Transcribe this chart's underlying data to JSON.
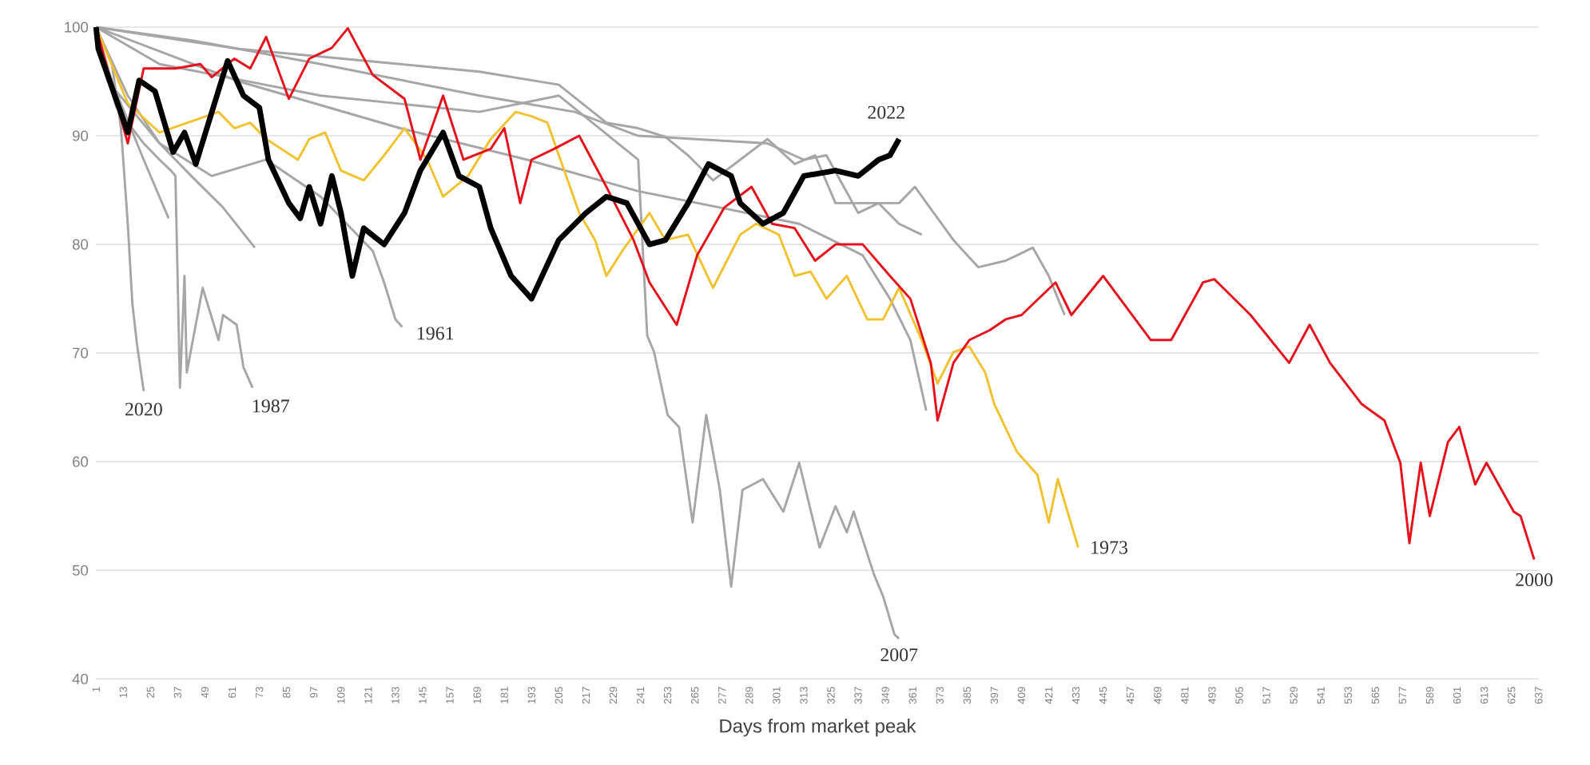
{
  "chart_data": {
    "type": "line",
    "xlabel": "Days from market peak",
    "xlim": [
      1,
      637
    ],
    "ylim": [
      40,
      100
    ],
    "xticks": [
      1,
      13,
      25,
      37,
      49,
      61,
      73,
      85,
      97,
      109,
      121,
      133,
      145,
      157,
      169,
      181,
      193,
      205,
      217,
      229,
      241,
      253,
      265,
      277,
      289,
      301,
      313,
      325,
      337,
      349,
      361,
      373,
      385,
      397,
      409,
      421,
      433,
      445,
      457,
      469,
      481,
      493,
      505,
      517,
      529,
      541,
      553,
      565,
      577,
      589,
      601,
      613,
      625,
      637
    ],
    "yticks": [
      40,
      50,
      60,
      70,
      80,
      90,
      100
    ],
    "grid": "y",
    "line_style": "solid",
    "marker": "none",
    "series": [
      {
        "color": "#a6a6a6",
        "x": [
          1,
          64,
          135,
          191,
          240,
          276,
          311,
          339,
          351,
          360,
          367
        ],
        "values": [
          100,
          95,
          90.7,
          87.8,
          84.9,
          83.4,
          81.9,
          79,
          75,
          71.2,
          64.7
        ]
      },
      {
        "color": "#a6a6a6",
        "x": [
          1,
          43,
          100,
          170,
          212,
          240,
          297,
          313,
          323,
          337,
          346,
          355,
          365
        ],
        "values": [
          100,
          98.8,
          96.6,
          93.7,
          92.2,
          90,
          89.3,
          87.8,
          88.2,
          82.9,
          83.8,
          81.9,
          80.9
        ]
      },
      {
        "color": "#a6a6a6",
        "x": [
          1,
          64,
          135,
          170,
          205,
          226,
          240,
          252,
          262,
          273,
          285,
          297,
          309,
          318,
          327,
          341,
          355,
          362,
          379,
          390,
          402,
          414,
          421,
          428
        ],
        "values": [
          100,
          98,
          96.6,
          95.9,
          94.7,
          91.2,
          90.7,
          89.9,
          88.2,
          85.9,
          87.8,
          89.7,
          87.4,
          88.2,
          83.8,
          83.8,
          83.8,
          85.3,
          80.4,
          77.9,
          78.5,
          79.7,
          77.1,
          73.5
        ]
      },
      {
        "color": "#a6a6a6",
        "x": [
          1,
          15,
          29,
          43,
          57,
          71
        ],
        "values": [
          100,
          93.7,
          89.3,
          86.3,
          83.4,
          79.7
        ]
      },
      {
        "color": "#a6a6a6",
        "x": [
          1,
          8,
          22,
          33
        ],
        "values": [
          100,
          95,
          87.8,
          82.4
        ]
      },
      {
        "name": "2020",
        "color": "#a6a6a6",
        "x": [
          1,
          8,
          12,
          15,
          17,
          19,
          22
        ],
        "values": [
          100,
          96.6,
          90.7,
          81.9,
          74.6,
          70.9,
          66.5
        ]
      },
      {
        "name": "1987",
        "color": "#a6a6a6",
        "x": [
          1,
          3,
          10,
          22,
          29,
          34,
          36,
          38,
          40,
          41,
          48,
          55,
          57,
          63,
          66,
          70
        ],
        "values": [
          100,
          97.6,
          92.6,
          89.3,
          87.8,
          86.8,
          86.3,
          66.8,
          77.1,
          68.2,
          76,
          71.2,
          73.5,
          72.6,
          68.7,
          66.8
        ]
      },
      {
        "name": "1961",
        "color": "#a6a6a6",
        "x": [
          1,
          6,
          29,
          52,
          76,
          100,
          123,
          128,
          133,
          136
        ],
        "values": [
          100,
          95.1,
          89.3,
          86.3,
          87.8,
          84.4,
          79.4,
          76.5,
          73.1,
          72.4
        ]
      },
      {
        "name": "2007",
        "color": "#a6a6a6",
        "x": [
          1,
          29,
          100,
          170,
          205,
          240,
          244,
          247,
          253,
          258,
          264,
          270,
          276,
          281,
          286,
          295,
          304,
          311,
          320,
          327,
          332,
          335,
          344,
          348,
          353,
          355
        ],
        "values": [
          100,
          96.6,
          93.7,
          92.2,
          93.7,
          87.8,
          71.6,
          70.1,
          64.3,
          63.2,
          54.4,
          64.3,
          57.4,
          48.5,
          57.4,
          58.4,
          55.4,
          59.9,
          52.1,
          55.9,
          53.5,
          55.4,
          49.6,
          47.6,
          44.1,
          43.7
        ]
      },
      {
        "name": "1973",
        "color": "#f2c12e",
        "x": [
          1,
          15,
          29,
          55,
          62,
          69,
          76,
          90,
          95,
          102,
          109,
          119,
          128,
          137,
          147,
          154,
          165,
          175,
          186,
          193,
          200,
          214,
          221,
          226,
          233,
          245,
          252,
          262,
          273,
          285,
          292,
          302,
          309,
          316,
          323,
          332,
          341,
          348,
          355,
          365,
          372,
          379,
          386,
          393,
          397,
          407,
          416,
          421,
          425,
          434
        ],
        "values": [
          100,
          93,
          90.3,
          92.2,
          90.7,
          91.2,
          89.7,
          87.8,
          89.7,
          90.3,
          86.8,
          85.9,
          88.2,
          90.7,
          87.8,
          84.4,
          86.3,
          89.7,
          92.2,
          91.8,
          91.2,
          82.9,
          80.4,
          77.1,
          79.4,
          82.9,
          80.4,
          80.9,
          76,
          80.9,
          81.9,
          80.9,
          77.1,
          77.5,
          75,
          77.1,
          73.1,
          73.1,
          76,
          71.2,
          67.2,
          70.1,
          70.6,
          68.2,
          65.3,
          60.9,
          58.8,
          54.4,
          58.4,
          52.1
        ]
      },
      {
        "name": "2000",
        "color": "#e8101a",
        "x": [
          1,
          15,
          22,
          36,
          47,
          52,
          62,
          69,
          76,
          86,
          95,
          105,
          112,
          123,
          137,
          144,
          154,
          163,
          175,
          181,
          188,
          193,
          203,
          214,
          226,
          238,
          245,
          257,
          266,
          278,
          290,
          299,
          309,
          318,
          327,
          339,
          351,
          360,
          369,
          372,
          379,
          386,
          395,
          402,
          409,
          424,
          431,
          445,
          466,
          475,
          489,
          494,
          510,
          527,
          536,
          545,
          559,
          569,
          576,
          580,
          585,
          589,
          597,
          602,
          609,
          614,
          626,
          629,
          635
        ],
        "values": [
          100,
          89.3,
          96.2,
          96.2,
          96.6,
          95.4,
          97.1,
          96.2,
          99.1,
          93.4,
          97.1,
          98.1,
          99.9,
          95.6,
          93.4,
          87.8,
          93.7,
          87.8,
          88.8,
          90.7,
          83.8,
          87.8,
          88.8,
          90,
          85.3,
          80.4,
          76.5,
          72.6,
          79,
          83.4,
          85.3,
          81.9,
          81.5,
          78.5,
          80,
          80,
          77.1,
          75,
          69.1,
          63.8,
          69.1,
          71.2,
          72.1,
          73.1,
          73.5,
          76.5,
          73.5,
          77.1,
          71.2,
          71.2,
          76.5,
          76.8,
          73.5,
          69.1,
          72.6,
          69.1,
          65.3,
          63.8,
          59.9,
          52.5,
          59.9,
          55,
          61.8,
          63.2,
          57.9,
          59.9,
          55.4,
          55,
          51
        ]
      },
      {
        "name": "2022",
        "color": "#000000",
        "x": [
          1,
          2,
          15,
          20,
          27,
          35,
          40,
          45,
          59,
          66,
          73,
          77,
          86,
          91,
          95,
          100,
          105,
          109,
          114,
          119,
          128,
          137,
          144,
          154,
          161,
          170,
          175,
          184,
          193,
          205,
          217,
          226,
          235,
          245,
          252,
          262,
          271,
          281,
          285,
          295,
          304,
          313,
          327,
          337,
          346,
          351,
          355
        ],
        "values": [
          100,
          98,
          90.3,
          95.1,
          94.1,
          88.5,
          90.3,
          87.4,
          96.9,
          93.7,
          92.6,
          87.8,
          83.8,
          82.4,
          85.3,
          81.9,
          86.3,
          82.9,
          77.1,
          81.5,
          80,
          82.9,
          86.8,
          90.3,
          86.3,
          85.3,
          81.5,
          77.1,
          75,
          80.4,
          82.9,
          84.4,
          83.8,
          80,
          80.4,
          83.8,
          87.4,
          86.3,
          83.8,
          81.9,
          82.9,
          86.3,
          86.8,
          86.3,
          87.8,
          88.2,
          89.7
        ]
      }
    ]
  }
}
